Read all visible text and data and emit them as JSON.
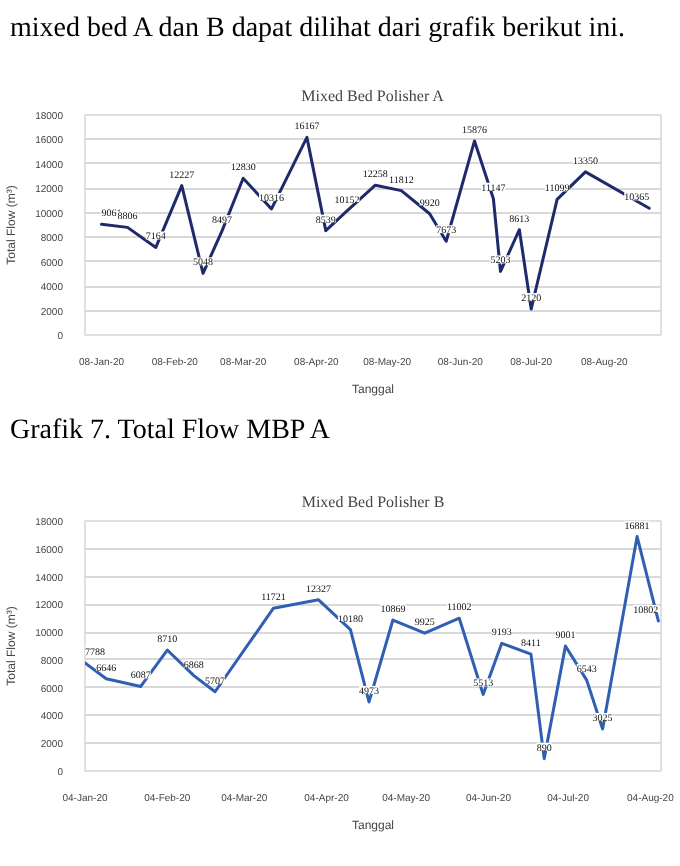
{
  "chart_data": [
    {
      "type": "line",
      "title": "Mixed Bed Polisher A",
      "xlabel": "Tanggal",
      "ylabel": "Total Flow (m³)",
      "annotations": [
        "mixed bed A dan B dapat dilihat dari grafik berikut ini.",
        "Grafik 7. Total Flow MBP A"
      ],
      "x": [
        "2020-01-08",
        "2020-01-19",
        "2020-01-31",
        "2020-02-11",
        "2020-02-20",
        "2020-02-28",
        "2020-03-08",
        "2020-03-20",
        "2020-04-04",
        "2020-04-12",
        "2020-04-21",
        "2020-05-03",
        "2020-05-14",
        "2020-05-26",
        "2020-06-02",
        "2020-06-14",
        "2020-06-22",
        "2020-06-25",
        "2020-07-03",
        "2020-07-08",
        "2020-07-19",
        "2020-07-31",
        "2020-08-27"
      ],
      "series": [
        {
          "color": "#1f2a6b",
          "values": [
            9061,
            8806,
            7164,
            12227,
            5048,
            8497,
            12830,
            10316,
            16167,
            8539,
            10152,
            12258,
            11812,
            9920,
            7673,
            15876,
            11147,
            5203,
            8613,
            2120,
            11099,
            13350,
            10365
          ],
          "value_labels": [
            "9061",
            "8806",
            "7164",
            "12227",
            "5048",
            "8497",
            "12830",
            "10316",
            "16167",
            "8539",
            "10152",
            "12258",
            "11812",
            "9920",
            "7673",
            "15876",
            "11147",
            "5203",
            "8613",
            "2120",
            "11099",
            "13350",
            "10365"
          ]
        }
      ],
      "xlim": [
        "2020-01-01",
        "2020-09-01"
      ],
      "xticks": [
        {
          "value": "2020-01-08",
          "label": "08-Jan-20"
        },
        {
          "value": "2020-02-08",
          "label": "08-Feb-20"
        },
        {
          "value": "2020-03-08",
          "label": "08-Mar-20"
        },
        {
          "value": "2020-04-08",
          "label": "08-Apr-20"
        },
        {
          "value": "2020-05-08",
          "label": "08-May-20"
        },
        {
          "value": "2020-06-08",
          "label": "08-Jun-20"
        },
        {
          "value": "2020-07-08",
          "label": "08-Jul-20"
        },
        {
          "value": "2020-08-08",
          "label": "08-Aug-20"
        }
      ],
      "ylim": [
        0,
        18000
      ],
      "yticks": [
        0,
        2000,
        4000,
        6000,
        8000,
        10000,
        12000,
        14000,
        16000,
        18000
      ],
      "grid": "y",
      "marker": "none",
      "line_style": "solid"
    },
    {
      "type": "line",
      "title": "Mixed Bed Polisher B",
      "xlabel": "Tanggal",
      "ylabel": "Total Flow (m³)",
      "x": [
        "2020-01-04",
        "2020-01-12",
        "2020-01-25",
        "2020-02-04",
        "2020-02-14",
        "2020-02-22",
        "2020-03-15",
        "2020-04-01",
        "2020-04-13",
        "2020-04-20",
        "2020-04-29",
        "2020-05-11",
        "2020-05-24",
        "2020-06-02",
        "2020-06-09",
        "2020-06-20",
        "2020-06-25",
        "2020-07-03",
        "2020-07-11",
        "2020-07-17",
        "2020-07-30",
        "2020-08-07"
      ],
      "series": [
        {
          "color": "#2f5fb3",
          "values": [
            7788,
            6646,
            6087,
            8710,
            6868,
            5707,
            11721,
            12327,
            10180,
            4973,
            10869,
            9925,
            11002,
            5513,
            9193,
            8411,
            890,
            9001,
            6543,
            3025,
            16881,
            10802
          ],
          "value_labels": [
            "7788",
            "6646",
            "6087",
            "8710",
            "6868",
            "5707",
            "11721",
            "12327",
            "10180",
            "4973",
            "10869",
            "9925",
            "11002",
            "5513",
            "9193",
            "8411",
            "890",
            "9001",
            "6543",
            "3025",
            "16881",
            "10802"
          ]
        }
      ],
      "xlim": [
        "2020-01-04",
        "2020-08-08"
      ],
      "xticks": [
        {
          "value": "2020-01-04",
          "label": "04-Jan-20"
        },
        {
          "value": "2020-02-04",
          "label": "04-Feb-20"
        },
        {
          "value": "2020-03-04",
          "label": "04-Mar-20"
        },
        {
          "value": "2020-04-04",
          "label": "04-Apr-20"
        },
        {
          "value": "2020-05-04",
          "label": "04-May-20"
        },
        {
          "value": "2020-06-04",
          "label": "04-Jun-20"
        },
        {
          "value": "2020-07-04",
          "label": "04-Jul-20"
        },
        {
          "value": "2020-08-04",
          "label": "04-Aug-20"
        }
      ],
      "ylim": [
        0,
        18000
      ],
      "yticks": [
        0,
        2000,
        4000,
        6000,
        8000,
        10000,
        12000,
        14000,
        16000,
        18000
      ],
      "grid": "y",
      "marker": "none",
      "line_style": "solid"
    }
  ]
}
